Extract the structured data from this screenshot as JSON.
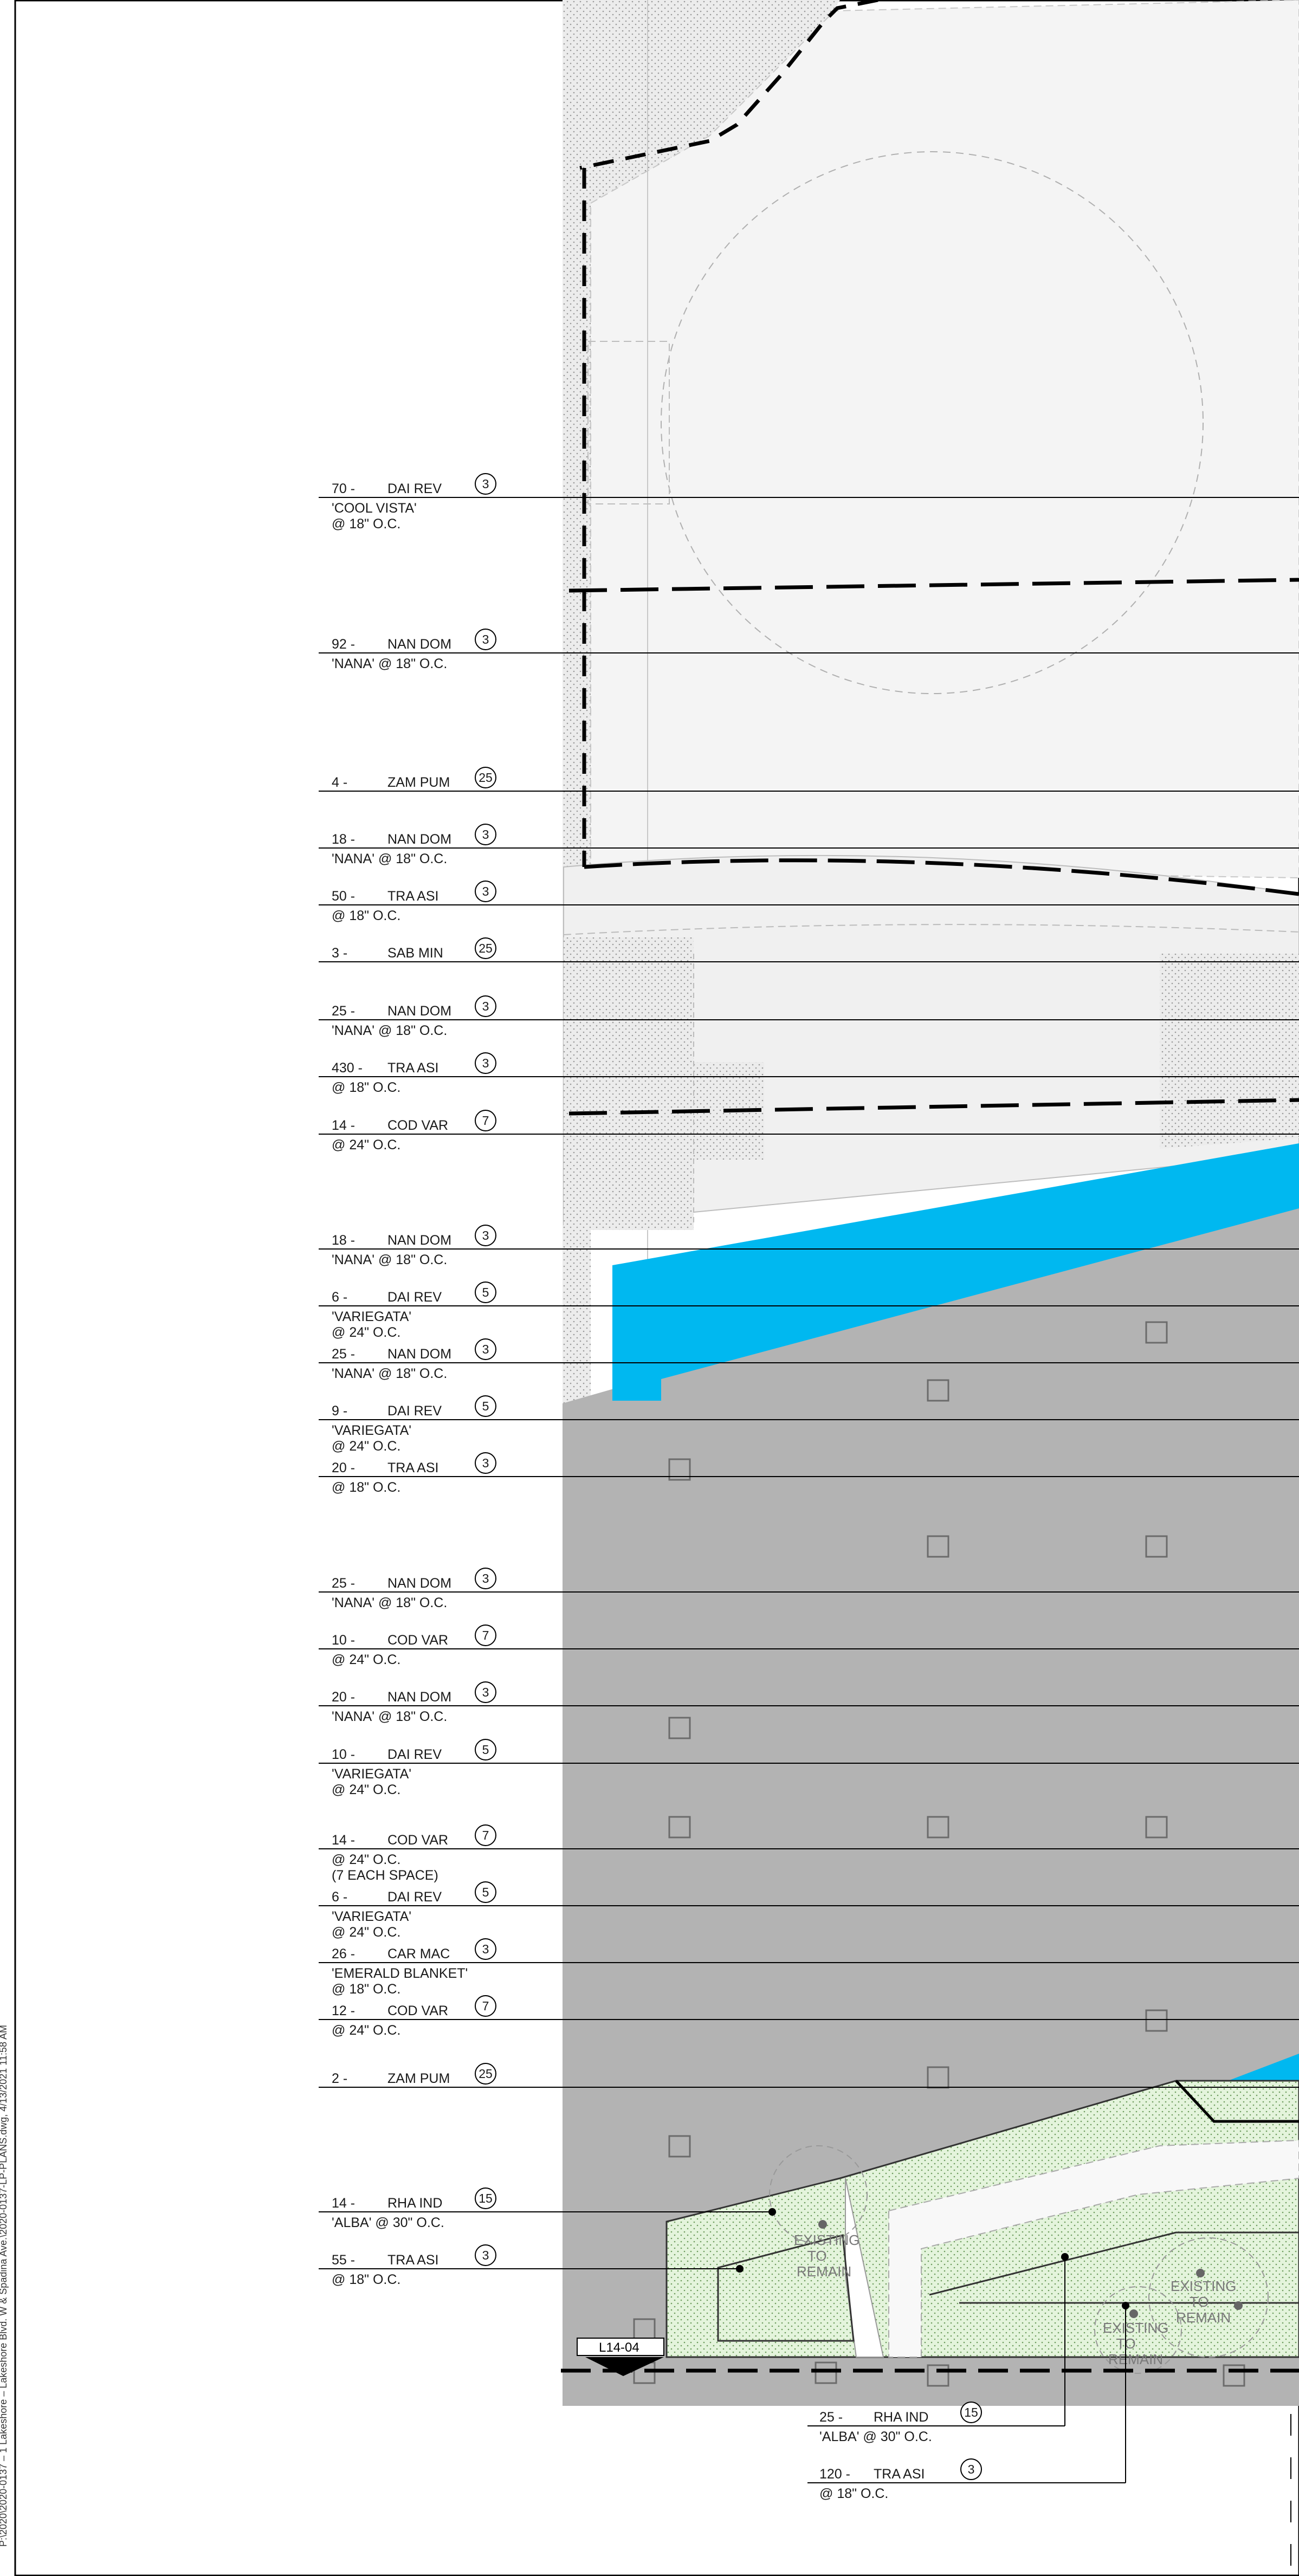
{
  "sheet": {
    "margin_note": "P:\\2020\\2020-0137 – 1 Lakeshore – Lakeshore Blvd. W & Spadina Ave.\\2020-0137-LP-PLANS.dwg, 4/13/2021 11:58 AM",
    "section_marker": "L14-04",
    "existing_to_remain": [
      "EXISTING",
      "TO",
      "REMAIN"
    ]
  },
  "callouts": [
    {
      "qty": "70 -",
      "code": "DAI REV",
      "tag": "3",
      "notes": [
        "'COOL VISTA'",
        "@ 18\" O.C."
      ]
    },
    {
      "qty": "92 -",
      "code": "NAN DOM",
      "tag": "3",
      "notes": [
        "'NANA' @ 18\" O.C."
      ]
    },
    {
      "qty": "4 -",
      "code": "ZAM PUM",
      "tag": "25",
      "notes": []
    },
    {
      "qty": "18 -",
      "code": "NAN DOM",
      "tag": "3",
      "notes": [
        "'NANA' @ 18\" O.C."
      ]
    },
    {
      "qty": "50 -",
      "code": "TRA ASI",
      "tag": "3",
      "notes": [
        "@ 18\" O.C."
      ]
    },
    {
      "qty": "3 -",
      "code": "SAB MIN",
      "tag": "25",
      "notes": []
    },
    {
      "qty": "25 -",
      "code": "NAN DOM",
      "tag": "3",
      "notes": [
        "'NANA' @ 18\" O.C."
      ]
    },
    {
      "qty": "430 -",
      "code": "TRA ASI",
      "tag": "3",
      "notes": [
        "@ 18\" O.C."
      ]
    },
    {
      "qty": "14 -",
      "code": "COD VAR",
      "tag": "7",
      "notes": [
        "@ 24\" O.C."
      ]
    },
    {
      "qty": "18 -",
      "code": "NAN DOM",
      "tag": "3",
      "notes": [
        "'NANA' @ 18\" O.C."
      ]
    },
    {
      "qty": "6 -",
      "code": "DAI REV",
      "tag": "5",
      "notes": [
        "'VARIEGATA'",
        "@ 24\" O.C."
      ]
    },
    {
      "qty": "25 -",
      "code": "NAN DOM",
      "tag": "3",
      "notes": [
        "'NANA' @ 18\" O.C."
      ]
    },
    {
      "qty": "9 -",
      "code": "DAI REV",
      "tag": "5",
      "notes": [
        "'VARIEGATA'",
        "@ 24\" O.C."
      ]
    },
    {
      "qty": "20 -",
      "code": "TRA ASI",
      "tag": "3",
      "notes": [
        "@ 18\" O.C."
      ]
    },
    {
      "qty": "25 -",
      "code": "NAN DOM",
      "tag": "3",
      "notes": [
        "'NANA' @ 18\" O.C."
      ]
    },
    {
      "qty": "10 -",
      "code": "COD VAR",
      "tag": "7",
      "notes": [
        "@ 24\" O.C."
      ]
    },
    {
      "qty": "20 -",
      "code": "NAN DOM",
      "tag": "3",
      "notes": [
        "'NANA' @ 18\" O.C."
      ]
    },
    {
      "qty": "10 -",
      "code": "DAI REV",
      "tag": "5",
      "notes": [
        "'VARIEGATA'",
        "@ 24\" O.C."
      ]
    },
    {
      "qty": "14 -",
      "code": "COD VAR",
      "tag": "7",
      "notes": [
        "@ 24\" O.C.",
        "(7 EACH SPACE)"
      ]
    },
    {
      "qty": "6 -",
      "code": "DAI REV",
      "tag": "5",
      "notes": [
        "'VARIEGATA'",
        "@ 24\" O.C."
      ]
    },
    {
      "qty": "26 -",
      "code": "CAR MAC",
      "tag": "3",
      "notes": [
        "'EMERALD BLANKET'",
        "@ 18\" O.C."
      ]
    },
    {
      "qty": "12 -",
      "code": "COD VAR",
      "tag": "7",
      "notes": [
        "@ 24\" O.C."
      ]
    },
    {
      "qty": "2 -",
      "code": "ZAM PUM",
      "tag": "25",
      "notes": []
    },
    {
      "qty": "14 -",
      "code": "RHA IND",
      "tag": "15",
      "notes": [
        "'ALBA' @ 30\" O.C."
      ]
    },
    {
      "qty": "55 -",
      "code": "TRA ASI",
      "tag": "3",
      "notes": [
        "@ 18\" O.C."
      ]
    }
  ],
  "bottom_callouts": [
    {
      "qty": "25 -",
      "code": "RHA IND",
      "tag": "15",
      "notes": [
        "'ALBA' @ 30\" O.C."
      ]
    },
    {
      "qty": "120 -",
      "code": "TRA ASI",
      "tag": "3",
      "notes": [
        "@ 18\" O.C."
      ]
    }
  ],
  "colors": {
    "water": "#00b8f0",
    "paving": "#b3b3b3",
    "planting": "#e4f4dc",
    "hatch": "#e9e9e9"
  }
}
